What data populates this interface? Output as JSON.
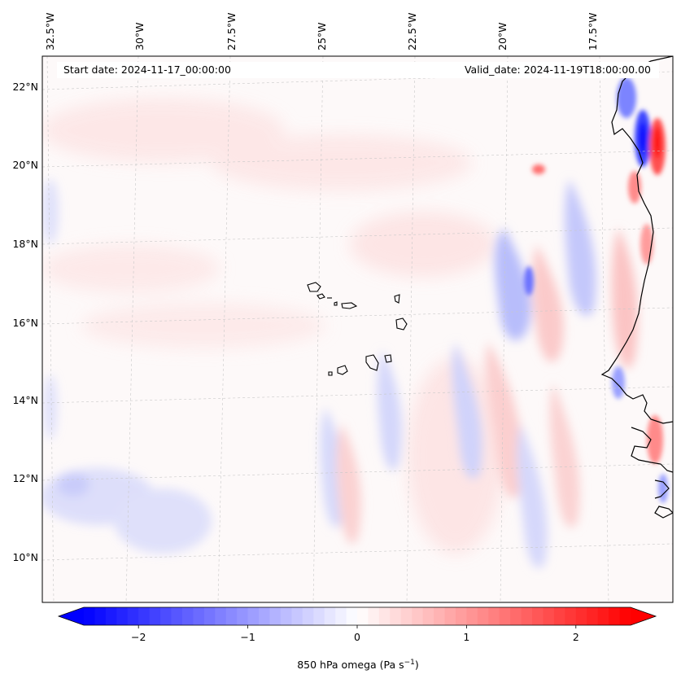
{
  "map": {
    "header": {
      "start_date": "Start date: 2024-11-17_00:00:00",
      "valid_date": "Valid_date: 2024-11-19T18:00:00.00"
    },
    "longitude_labels": [
      "32.5°W",
      "30°W",
      "27.5°W",
      "25°W",
      "22.5°W",
      "20°W",
      "17.5°W"
    ],
    "latitude_labels": [
      "22°N",
      "20°N",
      "18°N",
      "16°N",
      "14°N",
      "12°N",
      "10°N"
    ],
    "gridlines": "on",
    "colormap": "bwr",
    "colors": {
      "negative": "#0000ff",
      "zero": "#ffffff",
      "positive": "#ff0000",
      "coastline": "#000000"
    },
    "field": {
      "variable": "850 hPa omega",
      "regions": [
        {
          "name": "strong-descent-mauritania-coast",
          "sign": "positive",
          "peak": 2.5
        },
        {
          "name": "strong-ascent-mauritania-coast",
          "sign": "negative",
          "peak": -2.2
        },
        {
          "name": "banded-waves-west-africa",
          "sign": "mixed",
          "peak": 1.0
        },
        {
          "name": "weak-ascent-southwest",
          "sign": "negative",
          "peak": -0.4
        }
      ]
    },
    "colorbar": {
      "ticks": [
        "−2",
        "−1",
        "0",
        "1",
        "2"
      ],
      "tick_values": [
        -2,
        -1,
        0,
        1,
        2
      ],
      "range": [
        -2.5,
        2.5
      ],
      "extend": "both",
      "label": "850 hPa omega (Pa s",
      "label_exponent": "−1",
      "label_close": ")"
    }
  }
}
